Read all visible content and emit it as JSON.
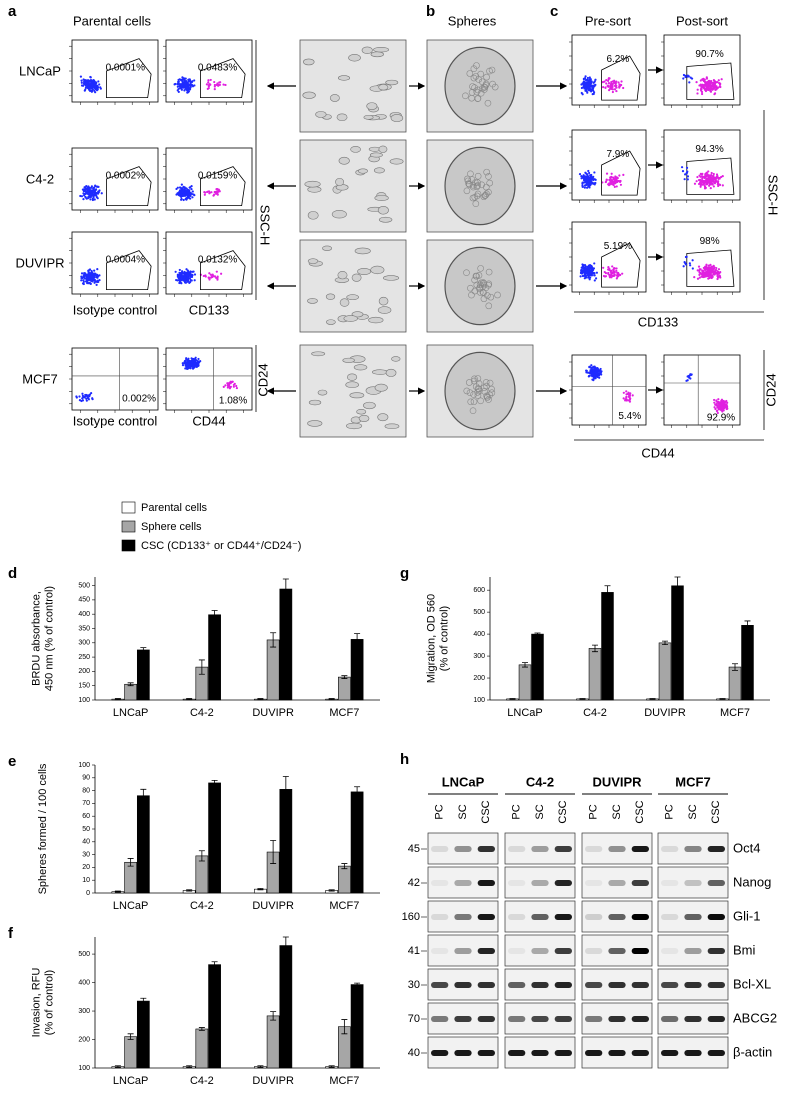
{
  "panel_a": {
    "letter": "a",
    "title": "Parental cells",
    "rows": [
      {
        "label": "LNCaP",
        "isotype_gate": "0.0001%",
        "marker_gate": "0.0483%"
      },
      {
        "label": "C4-2",
        "isotype_gate": "0.0002%",
        "marker_gate": "0.0159%"
      },
      {
        "label": "DUVIPR",
        "isotype_gate": "0.0004%",
        "marker_gate": "0.0132%"
      },
      {
        "label": "MCF7",
        "isotype_gate": "0.002%",
        "marker_gate": "1.08%"
      }
    ],
    "x_labels": [
      "Isotype control",
      "CD133",
      "Isotype control",
      "CD44"
    ],
    "y_labels": [
      "SSC-H",
      "CD24"
    ]
  },
  "panel_b": {
    "letter": "b",
    "title": "Spheres"
  },
  "panel_c": {
    "letter": "c",
    "titles": [
      "Pre-sort",
      "Post-sort"
    ],
    "rows": [
      {
        "pre": "6.2%",
        "post": "90.7%"
      },
      {
        "pre": "7.9%",
        "post": "94.3%"
      },
      {
        "pre": "5.19%",
        "post": "98%"
      },
      {
        "pre": "5.4%",
        "post": "92.9%"
      }
    ],
    "x_labels": [
      "CD133",
      "CD44"
    ],
    "y_labels": [
      "SSC-H",
      "CD24"
    ]
  },
  "legend": [
    {
      "name": "Parental cells",
      "color": "#ffffff"
    },
    {
      "name": "Sphere cells",
      "color": "#a6a6a6"
    },
    {
      "name": "CSC (CD133⁺ or CD44⁺/CD24⁻)",
      "color": "#000000"
    }
  ],
  "chart_data": [
    {
      "type": "bar",
      "letter": "d",
      "ylabel": [
        "BRDU absorbance,",
        "450 nm  (% of control)"
      ],
      "categories": [
        "LNCaP",
        "C4-2",
        "DUVIPR",
        "MCF7"
      ],
      "series": [
        {
          "values": [
            103,
            103,
            103,
            103
          ],
          "errors": [
            2,
            2,
            2,
            2
          ]
        },
        {
          "values": [
            155,
            215,
            310,
            180
          ],
          "errors": [
            5,
            25,
            25,
            5
          ]
        },
        {
          "values": [
            275,
            398,
            488,
            312
          ],
          "errors": [
            8,
            15,
            35,
            20
          ]
        }
      ],
      "ylim": [
        100,
        530
      ],
      "yticks": [
        100,
        150,
        200,
        250,
        300,
        350,
        400,
        450,
        500
      ]
    },
    {
      "type": "bar",
      "letter": "g",
      "ylabel": [
        "Migration, OD 560",
        "(% of control)"
      ],
      "categories": [
        "LNCaP",
        "C4-2",
        "DUVIPR",
        "MCF7"
      ],
      "series": [
        {
          "values": [
            105,
            105,
            105,
            105
          ],
          "errors": [
            2,
            2,
            2,
            2
          ]
        },
        {
          "values": [
            260,
            335,
            360,
            250
          ],
          "errors": [
            10,
            15,
            8,
            15
          ]
        },
        {
          "values": [
            400,
            590,
            620,
            440
          ],
          "errors": [
            5,
            30,
            40,
            20
          ]
        }
      ],
      "ylim": [
        100,
        660
      ],
      "yticks": [
        100,
        200,
        300,
        400,
        500,
        600
      ]
    },
    {
      "type": "bar",
      "letter": "e",
      "ylabel": [
        "Spheres formed / 100 cells"
      ],
      "categories": [
        "LNCaP",
        "C4-2",
        "DUVIPR",
        "MCF7"
      ],
      "series": [
        {
          "values": [
            1,
            2,
            3,
            2
          ],
          "errors": [
            0.5,
            0.5,
            0.5,
            0.5
          ]
        },
        {
          "values": [
            24,
            29,
            32,
            21
          ],
          "errors": [
            3,
            4,
            9,
            2
          ]
        },
        {
          "values": [
            76,
            86,
            81,
            79
          ],
          "errors": [
            5,
            2,
            10,
            4
          ]
        }
      ],
      "ylim": [
        0,
        100
      ],
      "yticks": [
        0,
        10,
        20,
        30,
        40,
        50,
        60,
        70,
        80,
        90,
        100
      ]
    },
    {
      "type": "bar",
      "letter": "f",
      "ylabel": [
        "Invasion, RFU",
        "(% of control)"
      ],
      "categories": [
        "LNCaP",
        "C4-2",
        "DUVIPR",
        "MCF7"
      ],
      "series": [
        {
          "values": [
            105,
            105,
            105,
            105
          ],
          "errors": [
            3,
            3,
            3,
            3
          ]
        },
        {
          "values": [
            210,
            237,
            283,
            245
          ],
          "errors": [
            10,
            5,
            15,
            25
          ]
        },
        {
          "values": [
            335,
            463,
            530,
            393
          ],
          "errors": [
            10,
            10,
            30,
            5
          ]
        }
      ],
      "ylim": [
        100,
        560
      ],
      "yticks": [
        100,
        200,
        300,
        400,
        500
      ]
    }
  ],
  "panel_h": {
    "letter": "h",
    "groups": [
      "LNCaP",
      "C4-2",
      "DUVIPR",
      "MCF7"
    ],
    "lanes": [
      "PC",
      "SC",
      "CSC"
    ],
    "rows": [
      {
        "marker": 45,
        "protein": "Oct4",
        "intensities": [
          0.1,
          0.4,
          0.8,
          0.1,
          0.35,
          0.75,
          0.1,
          0.4,
          0.9,
          0.1,
          0.45,
          0.85
        ]
      },
      {
        "marker": 42,
        "protein": "Nanog",
        "intensities": [
          0.05,
          0.3,
          0.9,
          0.05,
          0.3,
          0.85,
          0.05,
          0.3,
          0.75,
          0.05,
          0.2,
          0.6
        ]
      },
      {
        "marker": 160,
        "protein": "Gli-1",
        "intensities": [
          0.1,
          0.5,
          0.9,
          0.1,
          0.6,
          0.9,
          0.15,
          0.6,
          1,
          0.1,
          0.6,
          0.95
        ]
      },
      {
        "marker": 41,
        "protein": "Bmi",
        "intensities": [
          0.05,
          0.35,
          0.85,
          0.05,
          0.3,
          0.75,
          0.1,
          0.6,
          1,
          0.05,
          0.35,
          0.8
        ]
      },
      {
        "marker": 30,
        "protein": "Bcl-XL",
        "intensities": [
          0.7,
          0.8,
          0.8,
          0.6,
          0.8,
          0.85,
          0.7,
          0.8,
          0.8,
          0.7,
          0.8,
          0.8
        ]
      },
      {
        "marker": 70,
        "protein": "ABCG2",
        "intensities": [
          0.5,
          0.75,
          0.8,
          0.5,
          0.7,
          0.75,
          0.5,
          0.8,
          0.85,
          0.55,
          0.8,
          0.85
        ]
      },
      {
        "marker": 40,
        "protein": "β-actin",
        "intensities": [
          0.9,
          0.9,
          0.9,
          0.9,
          0.9,
          0.9,
          0.9,
          0.9,
          0.9,
          0.9,
          0.9,
          0.9
        ]
      }
    ]
  }
}
